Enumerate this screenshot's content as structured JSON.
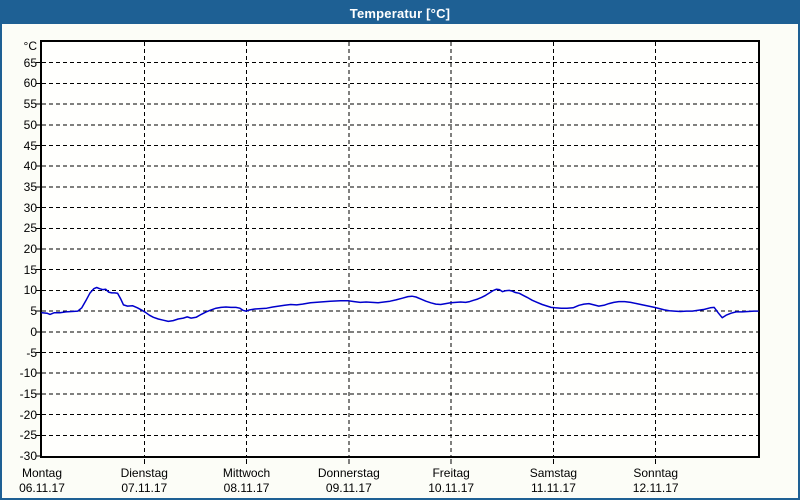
{
  "window": {
    "title": "Temperatur [°C]"
  },
  "colors": {
    "frame": "#1e6094",
    "titlebar_bg": "#1e6094",
    "titlebar_text": "#ffffff",
    "page_bg": "#fcfdf7",
    "plot_bg": "#fffffd",
    "axis": "#000000",
    "grid": "#000000",
    "label_text": "#000000",
    "line": "#0000cc"
  },
  "chart_data": {
    "type": "line",
    "title": "Temperatur [°C]",
    "grid": "dashed",
    "legend": "none",
    "y_axis": {
      "unit": "°C",
      "min": -30,
      "max": 70,
      "tick_step": 5,
      "tick_labels": [
        "65",
        "60",
        "55",
        "50",
        "45",
        "40",
        "35",
        "30",
        "25",
        "20",
        "15",
        "10",
        "5",
        "0",
        "-5",
        "-10",
        "-15",
        "-20",
        "-25",
        "-30"
      ]
    },
    "x_axis": {
      "span_days": 7,
      "day_labels": [
        {
          "name": "Montag",
          "date": "06.11.17"
        },
        {
          "name": "Dienstag",
          "date": "07.11.17"
        },
        {
          "name": "Mittwoch",
          "date": "08.11.17"
        },
        {
          "name": "Donnerstag",
          "date": "09.11.17"
        },
        {
          "name": "Freitag",
          "date": "10.11.17"
        },
        {
          "name": "Samstag",
          "date": "11.11.17"
        },
        {
          "name": "Sonntag",
          "date": "12.11.17"
        }
      ]
    },
    "series": [
      {
        "name": "Temperatur",
        "unit": "°C",
        "points_days_temp": [
          [
            0.0,
            4.6
          ],
          [
            0.049,
            4.5
          ],
          [
            0.078,
            4.2
          ],
          [
            0.117,
            4.6
          ],
          [
            0.175,
            4.6
          ],
          [
            0.233,
            4.8
          ],
          [
            0.292,
            4.9
          ],
          [
            0.35,
            5.0
          ],
          [
            0.389,
            5.8
          ],
          [
            0.428,
            7.5
          ],
          [
            0.467,
            9.3
          ],
          [
            0.506,
            10.4
          ],
          [
            0.535,
            10.7
          ],
          [
            0.564,
            10.4
          ],
          [
            0.593,
            10.2
          ],
          [
            0.622,
            10.3
          ],
          [
            0.651,
            9.6
          ],
          [
            0.681,
            9.4
          ],
          [
            0.71,
            9.4
          ],
          [
            0.739,
            9.3
          ],
          [
            0.768,
            8.0
          ],
          [
            0.797,
            6.5
          ],
          [
            0.836,
            6.2
          ],
          [
            0.885,
            6.3
          ],
          [
            0.933,
            5.8
          ],
          [
            0.972,
            5.3
          ],
          [
            1.011,
            4.7
          ],
          [
            1.05,
            4.0
          ],
          [
            1.089,
            3.5
          ],
          [
            1.137,
            3.1
          ],
          [
            1.186,
            2.8
          ],
          [
            1.235,
            2.5
          ],
          [
            1.283,
            2.7
          ],
          [
            1.332,
            3.1
          ],
          [
            1.381,
            3.3
          ],
          [
            1.42,
            3.6
          ],
          [
            1.458,
            3.3
          ],
          [
            1.507,
            3.5
          ],
          [
            1.556,
            4.2
          ],
          [
            1.604,
            4.8
          ],
          [
            1.653,
            5.3
          ],
          [
            1.701,
            5.7
          ],
          [
            1.75,
            5.9
          ],
          [
            1.799,
            6.0
          ],
          [
            1.847,
            5.9
          ],
          [
            1.896,
            5.9
          ],
          [
            1.935,
            5.7
          ],
          [
            1.964,
            5.2
          ],
          [
            1.993,
            5.0
          ],
          [
            2.032,
            5.3
          ],
          [
            2.081,
            5.5
          ],
          [
            2.139,
            5.6
          ],
          [
            2.197,
            5.7
          ],
          [
            2.256,
            6.0
          ],
          [
            2.314,
            6.2
          ],
          [
            2.372,
            6.4
          ],
          [
            2.431,
            6.6
          ],
          [
            2.489,
            6.5
          ],
          [
            2.547,
            6.7
          ],
          [
            2.625,
            7.0
          ],
          [
            2.722,
            7.2
          ],
          [
            2.819,
            7.4
          ],
          [
            2.917,
            7.5
          ],
          [
            2.994,
            7.5
          ],
          [
            3.053,
            7.3
          ],
          [
            3.111,
            7.1
          ],
          [
            3.169,
            7.2
          ],
          [
            3.228,
            7.1
          ],
          [
            3.286,
            7.0
          ],
          [
            3.344,
            7.2
          ],
          [
            3.403,
            7.4
          ],
          [
            3.461,
            7.7
          ],
          [
            3.519,
            8.1
          ],
          [
            3.578,
            8.5
          ],
          [
            3.617,
            8.6
          ],
          [
            3.656,
            8.4
          ],
          [
            3.704,
            7.9
          ],
          [
            3.753,
            7.4
          ],
          [
            3.801,
            7.0
          ],
          [
            3.85,
            6.7
          ],
          [
            3.898,
            6.6
          ],
          [
            3.947,
            6.8
          ],
          [
            3.996,
            7.0
          ],
          [
            4.044,
            7.1
          ],
          [
            4.093,
            7.2
          ],
          [
            4.141,
            7.1
          ],
          [
            4.18,
            7.3
          ],
          [
            4.219,
            7.6
          ],
          [
            4.258,
            7.9
          ],
          [
            4.297,
            8.3
          ],
          [
            4.336,
            8.8
          ],
          [
            4.375,
            9.4
          ],
          [
            4.414,
            10.0
          ],
          [
            4.443,
            10.3
          ],
          [
            4.472,
            10.2
          ],
          [
            4.501,
            9.7
          ],
          [
            4.53,
            9.9
          ],
          [
            4.569,
            10.0
          ],
          [
            4.598,
            9.8
          ],
          [
            4.628,
            9.5
          ],
          [
            4.666,
            9.3
          ],
          [
            4.705,
            8.8
          ],
          [
            4.744,
            8.3
          ],
          [
            4.793,
            7.6
          ],
          [
            4.841,
            7.1
          ],
          [
            4.89,
            6.6
          ],
          [
            4.939,
            6.2
          ],
          [
            4.978,
            5.9
          ],
          [
            5.017,
            5.8
          ],
          [
            5.075,
            5.7
          ],
          [
            5.133,
            5.7
          ],
          [
            5.192,
            5.8
          ],
          [
            5.25,
            6.4
          ],
          [
            5.299,
            6.7
          ],
          [
            5.347,
            6.8
          ],
          [
            5.396,
            6.5
          ],
          [
            5.444,
            6.2
          ],
          [
            5.493,
            6.4
          ],
          [
            5.542,
            6.8
          ],
          [
            5.59,
            7.1
          ],
          [
            5.639,
            7.3
          ],
          [
            5.697,
            7.3
          ],
          [
            5.755,
            7.1
          ],
          [
            5.814,
            6.8
          ],
          [
            5.872,
            6.5
          ],
          [
            5.93,
            6.2
          ],
          [
            5.988,
            5.9
          ],
          [
            6.037,
            5.6
          ],
          [
            6.085,
            5.3
          ],
          [
            6.134,
            5.1
          ],
          [
            6.183,
            5.0
          ],
          [
            6.241,
            4.9
          ],
          [
            6.3,
            5.0
          ],
          [
            6.358,
            5.0
          ],
          [
            6.416,
            5.2
          ],
          [
            6.475,
            5.4
          ],
          [
            6.533,
            5.8
          ],
          [
            6.572,
            5.9
          ],
          [
            6.611,
            4.6
          ],
          [
            6.65,
            3.4
          ],
          [
            6.688,
            4.0
          ],
          [
            6.737,
            4.5
          ],
          [
            6.786,
            4.8
          ],
          [
            6.844,
            4.8
          ],
          [
            6.903,
            4.9
          ],
          [
            6.961,
            5.0
          ],
          [
            7.0,
            5.0
          ]
        ]
      }
    ]
  }
}
